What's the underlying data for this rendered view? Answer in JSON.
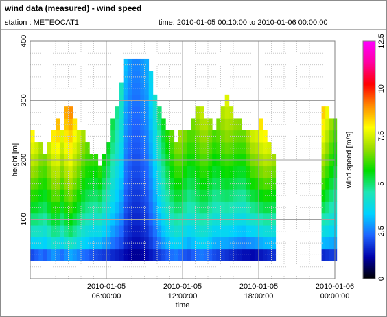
{
  "title": "wind data (measured) - wind speed",
  "station_label": "station : METEOCAT1",
  "time_label": "time: 2010-01-05 00:10:00 to 2010-01-06 00:00:00",
  "chart_data": {
    "type": "heatmap",
    "xlabel": "time",
    "ylabel": "height [m]",
    "colorbar_label": "wind speed [m/s]",
    "x_ticks": [
      {
        "hours": 6,
        "line1": "2010-01-05",
        "line2": "06:00:00"
      },
      {
        "hours": 12,
        "line1": "2010-01-05",
        "line2": "12:00:00"
      },
      {
        "hours": 18,
        "line1": "2010-01-05",
        "line2": "18:00:00"
      },
      {
        "hours": 24,
        "line1": "2010-01-06",
        "line2": "00:00:00"
      }
    ],
    "y_ticks": [
      "100",
      "200",
      "300",
      "400"
    ],
    "xlim_hours": [
      0,
      24
    ],
    "ylim": [
      0,
      400
    ],
    "colorbar_ticks": [
      "0",
      "2.5",
      "5",
      "7.5",
      "10",
      "12.5"
    ],
    "clim": [
      0,
      12.5
    ],
    "grid": true,
    "colormap_stops": [
      "#000000",
      "#0000aa",
      "#1e64ff",
      "#00d2ff",
      "#1ee6b4",
      "#00dc00",
      "#96dc00",
      "#ffff00",
      "#ff8c00",
      "#ff0000",
      "#ff00a0",
      "#ff00ff"
    ],
    "profile_heights_m": [
      40,
      60,
      80,
      100,
      120,
      140,
      160,
      180,
      200,
      220,
      240,
      260,
      280,
      300,
      320,
      340,
      360
    ],
    "segments": [
      {
        "hours": [
          0.17,
          0.5,
          0.83,
          1.17,
          1.5,
          1.83,
          2.17,
          2.5,
          2.83,
          3.17,
          3.5,
          3.83,
          4.17,
          4.5,
          4.83,
          5.17,
          5.5,
          5.83,
          6.17,
          6.5,
          6.83,
          7.17,
          7.5,
          7.83,
          8.17,
          8.5,
          8.83,
          9.17,
          9.5,
          9.83,
          10.17,
          10.5,
          10.83,
          11.17,
          11.5,
          11.83,
          12.17,
          12.5,
          12.83,
          13.17,
          13.5,
          13.83,
          14.17,
          14.5,
          14.83,
          15.17,
          15.5,
          15.83,
          16.17,
          16.5,
          16.83,
          17.17,
          17.5,
          17.83,
          18.17,
          18.5,
          18.83,
          19.17
        ],
        "top_heights_m": [
          240,
          230,
          235,
          215,
          225,
          245,
          260,
          250,
          280,
          290,
          275,
          250,
          240,
          235,
          210,
          200,
          195,
          210,
          230,
          260,
          285,
          320,
          360,
          360,
          360,
          360,
          360,
          360,
          340,
          310,
          290,
          270,
          250,
          240,
          235,
          245,
          255,
          250,
          265,
          280,
          290,
          270,
          260,
          255,
          260,
          285,
          300,
          290,
          275,
          265,
          250,
          245,
          240,
          255,
          260,
          240,
          225,
          215
        ],
        "speeds_low_m_s": [
          2.0,
          2.2,
          2.4,
          2.2,
          2.5,
          2.8,
          2.6,
          2.4,
          2.7,
          3.0,
          2.8,
          2.6,
          2.4,
          2.3,
          2.1,
          2.0,
          1.9,
          1.8,
          1.8,
          1.6,
          1.5,
          1.4,
          1.2,
          1.1,
          1.0,
          1.0,
          1.1,
          1.2,
          1.4,
          1.6,
          1.8,
          2.0,
          2.2,
          2.4,
          2.5,
          2.3,
          2.1,
          2.0,
          2.2,
          2.4,
          2.5,
          2.4,
          2.2,
          2.0,
          1.9,
          1.8,
          1.7,
          1.6,
          1.5,
          1.4,
          1.3,
          1.3,
          1.2,
          1.3,
          1.4,
          1.5,
          1.6,
          1.7
        ],
        "speeds_high_m_s": [
          8.0,
          7.6,
          7.2,
          6.8,
          7.4,
          8.2,
          8.6,
          7.8,
          8.8,
          9.2,
          8.4,
          7.6,
          7.0,
          6.6,
          6.2,
          6.0,
          6.2,
          5.8,
          5.6,
          5.2,
          4.8,
          4.4,
          3.2,
          2.8,
          2.6,
          2.6,
          2.8,
          3.0,
          3.6,
          4.2,
          5.0,
          5.6,
          6.0,
          6.4,
          6.8,
          7.0,
          6.8,
          6.4,
          6.6,
          7.0,
          7.4,
          7.2,
          6.8,
          6.4,
          6.6,
          7.2,
          7.6,
          7.4,
          7.0,
          6.8,
          6.6,
          7.0,
          7.4,
          7.8,
          8.2,
          8.0,
          7.6,
          7.2
        ]
      },
      {
        "hours": [
          23.1,
          23.4,
          23.7,
          24.0
        ],
        "top_heights_m": [
          290,
          280,
          270,
          260
        ],
        "speeds_low_m_s": [
          1.6,
          1.7,
          1.8,
          1.8
        ],
        "speeds_high_m_s": [
          8.6,
          7.8,
          7.0,
          6.4
        ]
      }
    ]
  }
}
